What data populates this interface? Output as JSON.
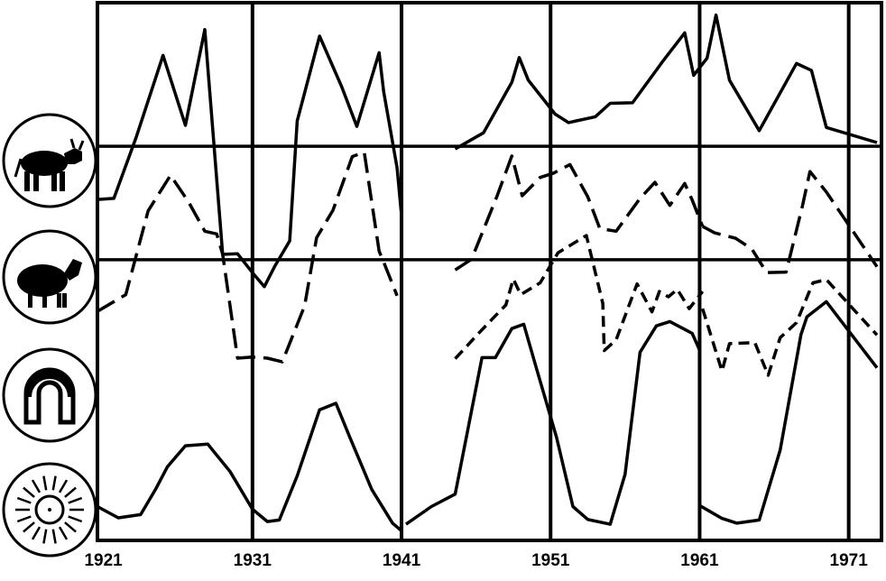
{
  "chart_data": {
    "type": "line",
    "title": "",
    "xlabel": "",
    "ylabel": "",
    "x_ticks": [
      1921,
      1931,
      1941,
      1951,
      1961,
      1971
    ],
    "xlim": [
      1920.6,
      1973.2
    ],
    "ylim": [
      0,
      100
    ],
    "grid": true,
    "legend": "icons-left",
    "row_icons": [
      "cattle-icon",
      "sheep-icon",
      "magnet-icon",
      "sun-icon"
    ],
    "reference_levels": [
      73.3,
      52.2
    ],
    "colors": {
      "line": "#000000",
      "background": "#ffffff"
    },
    "series": [
      {
        "icon": "cattle-icon",
        "dash": "solid",
        "segments": [
          {
            "x": [
              1920.6,
              1921.7,
              1923.2,
              1925.0,
              1926.5,
              1927.8,
              1929.0,
              1930.0,
              1931.0,
              1931.8,
              1932.5,
              1933.5,
              1934.0,
              1935.5,
              1937.0,
              1938.0,
              1939.5,
              1939.8,
              1940.7,
              1941.0
            ],
            "y": [
              63.4,
              63.6,
              75.0,
              90.2,
              77.2,
              95.0,
              53.2,
              53.3,
              49.8,
              47.2,
              51.0,
              55.7,
              78.0,
              93.8,
              84.3,
              77.0,
              90.7,
              83.5,
              69.3,
              60.5
            ]
          },
          {
            "x": [
              1944.6,
              1946.5,
              1948.4,
              1948.9,
              1949.5,
              1950.3,
              1951.3,
              1952.2,
              1954.0,
              1955.0,
              1956.5,
              1958.5,
              1960.0,
              1960.6,
              1961.5,
              1962.1,
              1963.0,
              1965.0,
              1967.5,
              1968.5,
              1969.5,
              1972.9
            ],
            "y": [
              72.8,
              75.8,
              85.2,
              89.8,
              85.6,
              82.8,
              79.3,
              77.7,
              78.8,
              81.3,
              81.4,
              89.0,
              94.4,
              86.5,
              89.7,
              97.7,
              85.6,
              76.2,
              88.7,
              87.4,
              76.8,
              74.0
            ]
          }
        ]
      },
      {
        "icon": "sheep-icon",
        "dash": "long-dash",
        "segments": [
          {
            "x": [
              1920.6,
              1922.5,
              1924.0,
              1925.5,
              1926.7,
              1927.8,
              1928.6,
              1929.0,
              1930.0,
              1931.0,
              1932.0,
              1933.0,
              1934.5,
              1935.3,
              1936.4,
              1937.7,
              1938.5,
              1939.5,
              1939.8,
              1940.7
            ],
            "y": [
              42.6,
              45.7,
              61.3,
              67.9,
              63.0,
              57.5,
              57.0,
              53.2,
              33.9,
              34.1,
              33.9,
              33.2,
              43.6,
              56.3,
              61.4,
              71.4,
              72.2,
              53.8,
              51.8,
              45.5
            ]
          },
          {
            "x": [
              1944.6,
              1945.7,
              1947.4,
              1948.4,
              1949.1,
              1950.3,
              1951.2,
              1952.3,
              1953.5,
              1954.3,
              1955.4,
              1957.0,
              1958.0,
              1959.0,
              1960.0,
              1960.5,
              1961.2
            ],
            "y": [
              50.3,
              52.3,
              64.0,
              71.5,
              64.1,
              67.5,
              68.3,
              69.9,
              63.9,
              58.0,
              57.5,
              63.6,
              66.6,
              62.3,
              66.4,
              63.3,
              58.4
            ]
          },
          {
            "x": [
              1961.2,
              1962.0,
              1963.4,
              1964.5,
              1965.5,
              1966.8,
              1967.9,
              1968.4,
              1969.5,
              1972.9
            ],
            "y": [
              58.4,
              57.2,
              56.2,
              54.2,
              49.8,
              49.9,
              62.2,
              68.6,
              64.8,
              50.9
            ]
          }
        ]
      },
      {
        "icon": "magnet-icon",
        "dash": "short-dash",
        "segments": [
          {
            "x": [
              1944.6,
              1946.3,
              1948.0,
              1948.5,
              1949.0,
              1950.3,
              1951.5,
              1953.4,
              1954.5,
              1954.6,
              1955.4,
              1956.8,
              1957.8,
              1958.3,
              1958.9,
              1959.5,
              1960.3,
              1961.2
            ],
            "y": [
              33.8,
              38.9,
              43.8,
              48.6,
              45.7,
              47.9,
              53.5,
              56.7,
              44.1,
              35.3,
              37.3,
              47.7,
              42.5,
              46.3,
              45.3,
              46.7,
              43.1,
              46.3
            ]
          },
          {
            "x": [
              1961.2,
              1962.5,
              1963.0,
              1964.7,
              1965.6,
              1966.4,
              1967.5,
              1968.6,
              1969.5,
              1972.9
            ],
            "y": [
              43.1,
              31.5,
              36.6,
              36.8,
              30.7,
              37.7,
              40.5,
              47.9,
              48.5,
              38.2
            ]
          }
        ]
      },
      {
        "icon": "sun-icon",
        "dash": "solid",
        "segments": [
          {
            "x": [
              1920.6,
              1922.0,
              1923.5,
              1924.5,
              1925.3,
              1926.5,
              1928.0,
              1929.5,
              1931.0,
              1932.0,
              1932.8,
              1934.0,
              1935.5,
              1936.6,
              1937.5,
              1939.0,
              1940.4,
              1941.0
            ],
            "y": [
              6.3,
              4.2,
              4.8,
              9.5,
              13.7,
              17.6,
              17.9,
              12.8,
              5.8,
              3.5,
              3.8,
              12.0,
              24.3,
              25.5,
              19.4,
              9.5,
              3.2,
              1.8
            ]
          },
          {
            "x": [
              1941.3,
              1943.0,
              1944.6,
              1946.4,
              1947.3,
              1948.4,
              1949.2,
              1950.0,
              1951.4,
              1952.5,
              1953.5,
              1955.0,
              1956.0,
              1957.0,
              1958.1,
              1959.0,
              1960.5,
              1961.0
            ],
            "y": [
              3.0,
              6.3,
              8.6,
              34.0,
              34.0,
              39.4,
              40.2,
              32.5,
              19.2,
              6.3,
              3.9,
              3.0,
              12.3,
              35.0,
              39.9,
              40.7,
              38.5,
              35.4
            ]
          },
          {
            "x": [
              1961.0,
              1962.5,
              1963.5,
              1965.0,
              1966.4,
              1967.8,
              1968.2,
              1969.5,
              1972.9
            ],
            "y": [
              6.5,
              4.1,
              3.2,
              3.8,
              16.8,
              38.3,
              41.6,
              44.4,
              32.1
            ]
          }
        ]
      }
    ]
  }
}
